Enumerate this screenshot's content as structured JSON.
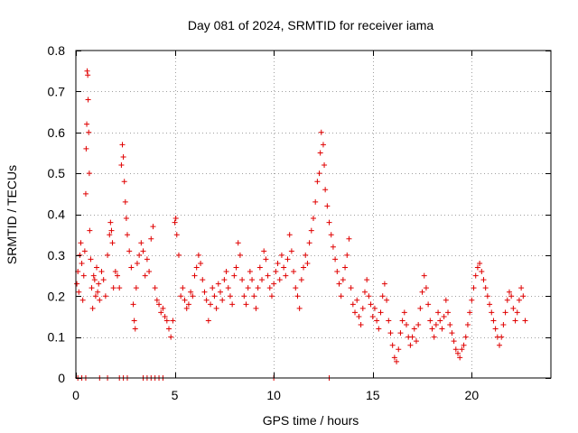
{
  "chart_data": {
    "type": "scatter",
    "title": "Day 081 of 2024, SRMTID for receiver iama",
    "xlabel": "GPS time / hours",
    "ylabel": "SRMTID / TECUs",
    "xlim": [
      0,
      24
    ],
    "ylim": [
      0,
      0.8
    ],
    "x_ticks": [
      0,
      5,
      10,
      15,
      20
    ],
    "y_ticks": [
      0,
      0.1,
      0.2,
      0.3,
      0.4,
      0.5,
      0.6,
      0.7,
      0.8
    ],
    "x_tick_labels": [
      "0",
      "5",
      "10",
      "15",
      "20"
    ],
    "y_tick_labels": [
      "0",
      "0.1",
      "0.2",
      "0.3",
      "0.4",
      "0.5",
      "0.6",
      "0.7",
      "0.8"
    ],
    "grid": true,
    "marker": "+",
    "color": "#e00000",
    "series": [
      {
        "name": "SRMTID",
        "points": [
          [
            0.05,
            0.23
          ],
          [
            0.1,
            0.26
          ],
          [
            0.15,
            0.21
          ],
          [
            0.2,
            0.3
          ],
          [
            0.25,
            0.33
          ],
          [
            0.3,
            0.28
          ],
          [
            0.35,
            0.19
          ],
          [
            0.4,
            0.25
          ],
          [
            0.45,
            0.31
          ],
          [
            0.5,
            0.45
          ],
          [
            0.52,
            0.56
          ],
          [
            0.55,
            0.62
          ],
          [
            0.57,
            0.75
          ],
          [
            0.6,
            0.74
          ],
          [
            0.62,
            0.68
          ],
          [
            0.65,
            0.6
          ],
          [
            0.68,
            0.5
          ],
          [
            0.7,
            0.36
          ],
          [
            0.75,
            0.29
          ],
          [
            0.8,
            0.22
          ],
          [
            0.85,
            0.17
          ],
          [
            0.9,
            0.25
          ],
          [
            0.95,
            0.24
          ],
          [
            1.0,
            0.2
          ],
          [
            1.05,
            0.27
          ],
          [
            1.1,
            0.21
          ],
          [
            1.15,
            0.23
          ],
          [
            1.2,
            0.19
          ],
          [
            1.3,
            0.26
          ],
          [
            1.4,
            0.24
          ],
          [
            1.5,
            0.2
          ],
          [
            1.6,
            0.3
          ],
          [
            1.7,
            0.35
          ],
          [
            1.75,
            0.38
          ],
          [
            1.8,
            0.36
          ],
          [
            1.85,
            0.33
          ],
          [
            1.9,
            0.22
          ],
          [
            2.0,
            0.26
          ],
          [
            2.1,
            0.25
          ],
          [
            2.2,
            0.22
          ],
          [
            2.3,
            0.52
          ],
          [
            2.35,
            0.57
          ],
          [
            2.4,
            0.54
          ],
          [
            2.45,
            0.48
          ],
          [
            2.5,
            0.43
          ],
          [
            2.55,
            0.39
          ],
          [
            2.6,
            0.35
          ],
          [
            2.7,
            0.31
          ],
          [
            2.8,
            0.27
          ],
          [
            2.9,
            0.18
          ],
          [
            2.95,
            0.14
          ],
          [
            3.0,
            0.12
          ],
          [
            3.05,
            0.22
          ],
          [
            3.1,
            0.28
          ],
          [
            3.2,
            0.3
          ],
          [
            3.3,
            0.33
          ],
          [
            3.4,
            0.31
          ],
          [
            3.5,
            0.25
          ],
          [
            3.6,
            0.29
          ],
          [
            3.7,
            0.26
          ],
          [
            3.8,
            0.34
          ],
          [
            3.9,
            0.37
          ],
          [
            4.0,
            0.22
          ],
          [
            4.1,
            0.19
          ],
          [
            4.2,
            0.18
          ],
          [
            4.3,
            0.16
          ],
          [
            4.4,
            0.17
          ],
          [
            4.5,
            0.15
          ],
          [
            4.6,
            0.14
          ],
          [
            4.7,
            0.12
          ],
          [
            4.8,
            0.1
          ],
          [
            4.9,
            0.14
          ],
          [
            5.0,
            0.38
          ],
          [
            5.05,
            0.39
          ],
          [
            5.1,
            0.35
          ],
          [
            5.2,
            0.3
          ],
          [
            5.3,
            0.2
          ],
          [
            5.4,
            0.22
          ],
          [
            5.5,
            0.19
          ],
          [
            5.6,
            0.17
          ],
          [
            5.7,
            0.18
          ],
          [
            5.8,
            0.21
          ],
          [
            5.9,
            0.2
          ],
          [
            6.0,
            0.25
          ],
          [
            6.1,
            0.27
          ],
          [
            6.2,
            0.3
          ],
          [
            6.3,
            0.28
          ],
          [
            6.4,
            0.24
          ],
          [
            6.5,
            0.21
          ],
          [
            6.6,
            0.19
          ],
          [
            6.7,
            0.14
          ],
          [
            6.8,
            0.18
          ],
          [
            6.9,
            0.22
          ],
          [
            7.0,
            0.2
          ],
          [
            7.1,
            0.17
          ],
          [
            7.2,
            0.23
          ],
          [
            7.3,
            0.21
          ],
          [
            7.4,
            0.19
          ],
          [
            7.5,
            0.24
          ],
          [
            7.6,
            0.26
          ],
          [
            7.7,
            0.22
          ],
          [
            7.8,
            0.2
          ],
          [
            7.9,
            0.18
          ],
          [
            8.0,
            0.25
          ],
          [
            8.1,
            0.27
          ],
          [
            8.2,
            0.33
          ],
          [
            8.3,
            0.3
          ],
          [
            8.4,
            0.24
          ],
          [
            8.5,
            0.2
          ],
          [
            8.6,
            0.18
          ],
          [
            8.7,
            0.22
          ],
          [
            8.8,
            0.26
          ],
          [
            8.9,
            0.24
          ],
          [
            9.0,
            0.2
          ],
          [
            9.1,
            0.17
          ],
          [
            9.2,
            0.22
          ],
          [
            9.3,
            0.27
          ],
          [
            9.4,
            0.24
          ],
          [
            9.5,
            0.31
          ],
          [
            9.6,
            0.29
          ],
          [
            9.7,
            0.25
          ],
          [
            9.8,
            0.22
          ],
          [
            9.9,
            0.2
          ],
          [
            10.0,
            0.23
          ],
          [
            10.1,
            0.26
          ],
          [
            10.2,
            0.28
          ],
          [
            10.3,
            0.24
          ],
          [
            10.4,
            0.3
          ],
          [
            10.5,
            0.27
          ],
          [
            10.6,
            0.25
          ],
          [
            10.7,
            0.29
          ],
          [
            10.8,
            0.35
          ],
          [
            10.9,
            0.31
          ],
          [
            11.0,
            0.26
          ],
          [
            11.1,
            0.22
          ],
          [
            11.2,
            0.2
          ],
          [
            11.3,
            0.17
          ],
          [
            11.4,
            0.24
          ],
          [
            11.5,
            0.27
          ],
          [
            11.6,
            0.3
          ],
          [
            11.7,
            0.28
          ],
          [
            11.8,
            0.33
          ],
          [
            11.9,
            0.36
          ],
          [
            12.0,
            0.39
          ],
          [
            12.1,
            0.43
          ],
          [
            12.2,
            0.48
          ],
          [
            12.3,
            0.5
          ],
          [
            12.35,
            0.55
          ],
          [
            12.4,
            0.6
          ],
          [
            12.5,
            0.57
          ],
          [
            12.55,
            0.52
          ],
          [
            12.6,
            0.46
          ],
          [
            12.7,
            0.42
          ],
          [
            12.8,
            0.38
          ],
          [
            12.9,
            0.35
          ],
          [
            13.0,
            0.32
          ],
          [
            13.1,
            0.29
          ],
          [
            13.2,
            0.26
          ],
          [
            13.3,
            0.23
          ],
          [
            13.4,
            0.2
          ],
          [
            13.5,
            0.24
          ],
          [
            13.6,
            0.27
          ],
          [
            13.7,
            0.3
          ],
          [
            13.8,
            0.34
          ],
          [
            13.9,
            0.22
          ],
          [
            14.0,
            0.18
          ],
          [
            14.1,
            0.16
          ],
          [
            14.2,
            0.19
          ],
          [
            14.3,
            0.15
          ],
          [
            14.4,
            0.13
          ],
          [
            14.5,
            0.17
          ],
          [
            14.6,
            0.21
          ],
          [
            14.7,
            0.24
          ],
          [
            14.8,
            0.2
          ],
          [
            14.9,
            0.18
          ],
          [
            15.0,
            0.15
          ],
          [
            15.1,
            0.17
          ],
          [
            15.2,
            0.14
          ],
          [
            15.3,
            0.12
          ],
          [
            15.4,
            0.16
          ],
          [
            15.5,
            0.2
          ],
          [
            15.6,
            0.23
          ],
          [
            15.7,
            0.19
          ],
          [
            15.8,
            0.14
          ],
          [
            15.9,
            0.11
          ],
          [
            16.0,
            0.08
          ],
          [
            16.1,
            0.05
          ],
          [
            16.2,
            0.04
          ],
          [
            16.3,
            0.07
          ],
          [
            16.4,
            0.11
          ],
          [
            16.5,
            0.14
          ],
          [
            16.6,
            0.16
          ],
          [
            16.7,
            0.13
          ],
          [
            16.8,
            0.1
          ],
          [
            16.9,
            0.08
          ],
          [
            17.0,
            0.1
          ],
          [
            17.1,
            0.12
          ],
          [
            17.2,
            0.09
          ],
          [
            17.3,
            0.13
          ],
          [
            17.4,
            0.17
          ],
          [
            17.5,
            0.21
          ],
          [
            17.6,
            0.25
          ],
          [
            17.7,
            0.22
          ],
          [
            17.8,
            0.18
          ],
          [
            17.9,
            0.14
          ],
          [
            18.0,
            0.12
          ],
          [
            18.1,
            0.1
          ],
          [
            18.2,
            0.13
          ],
          [
            18.3,
            0.16
          ],
          [
            18.4,
            0.14
          ],
          [
            18.5,
            0.12
          ],
          [
            18.6,
            0.15
          ],
          [
            18.7,
            0.19
          ],
          [
            18.8,
            0.16
          ],
          [
            18.9,
            0.13
          ],
          [
            19.0,
            0.11
          ],
          [
            19.1,
            0.09
          ],
          [
            19.2,
            0.07
          ],
          [
            19.3,
            0.06
          ],
          [
            19.4,
            0.05
          ],
          [
            19.5,
            0.07
          ],
          [
            19.6,
            0.08
          ],
          [
            19.7,
            0.1
          ],
          [
            19.8,
            0.13
          ],
          [
            19.9,
            0.16
          ],
          [
            20.0,
            0.19
          ],
          [
            20.1,
            0.22
          ],
          [
            20.2,
            0.25
          ],
          [
            20.3,
            0.27
          ],
          [
            20.4,
            0.28
          ],
          [
            20.5,
            0.26
          ],
          [
            20.6,
            0.24
          ],
          [
            20.7,
            0.22
          ],
          [
            20.8,
            0.2
          ],
          [
            20.9,
            0.18
          ],
          [
            21.0,
            0.16
          ],
          [
            21.1,
            0.14
          ],
          [
            21.2,
            0.12
          ],
          [
            21.3,
            0.1
          ],
          [
            21.4,
            0.08
          ],
          [
            21.5,
            0.1
          ],
          [
            21.6,
            0.13
          ],
          [
            21.7,
            0.16
          ],
          [
            21.8,
            0.19
          ],
          [
            21.9,
            0.21
          ],
          [
            22.0,
            0.2
          ],
          [
            22.1,
            0.17
          ],
          [
            22.2,
            0.14
          ],
          [
            22.3,
            0.16
          ],
          [
            22.4,
            0.19
          ],
          [
            22.5,
            0.22
          ],
          [
            22.6,
            0.2
          ],
          [
            22.7,
            0.14
          ],
          [
            0.1,
            0.0
          ],
          [
            0.3,
            0.0
          ],
          [
            0.5,
            0.0
          ],
          [
            1.2,
            0.0
          ],
          [
            1.6,
            0.0
          ],
          [
            2.2,
            0.0
          ],
          [
            2.4,
            0.0
          ],
          [
            2.6,
            0.0
          ],
          [
            3.4,
            0.0
          ],
          [
            3.6,
            0.0
          ],
          [
            3.8,
            0.0
          ],
          [
            4.0,
            0.0
          ],
          [
            4.2,
            0.0
          ],
          [
            4.4,
            0.0
          ],
          [
            10.0,
            0.0
          ],
          [
            12.8,
            0.0
          ]
        ]
      }
    ]
  }
}
